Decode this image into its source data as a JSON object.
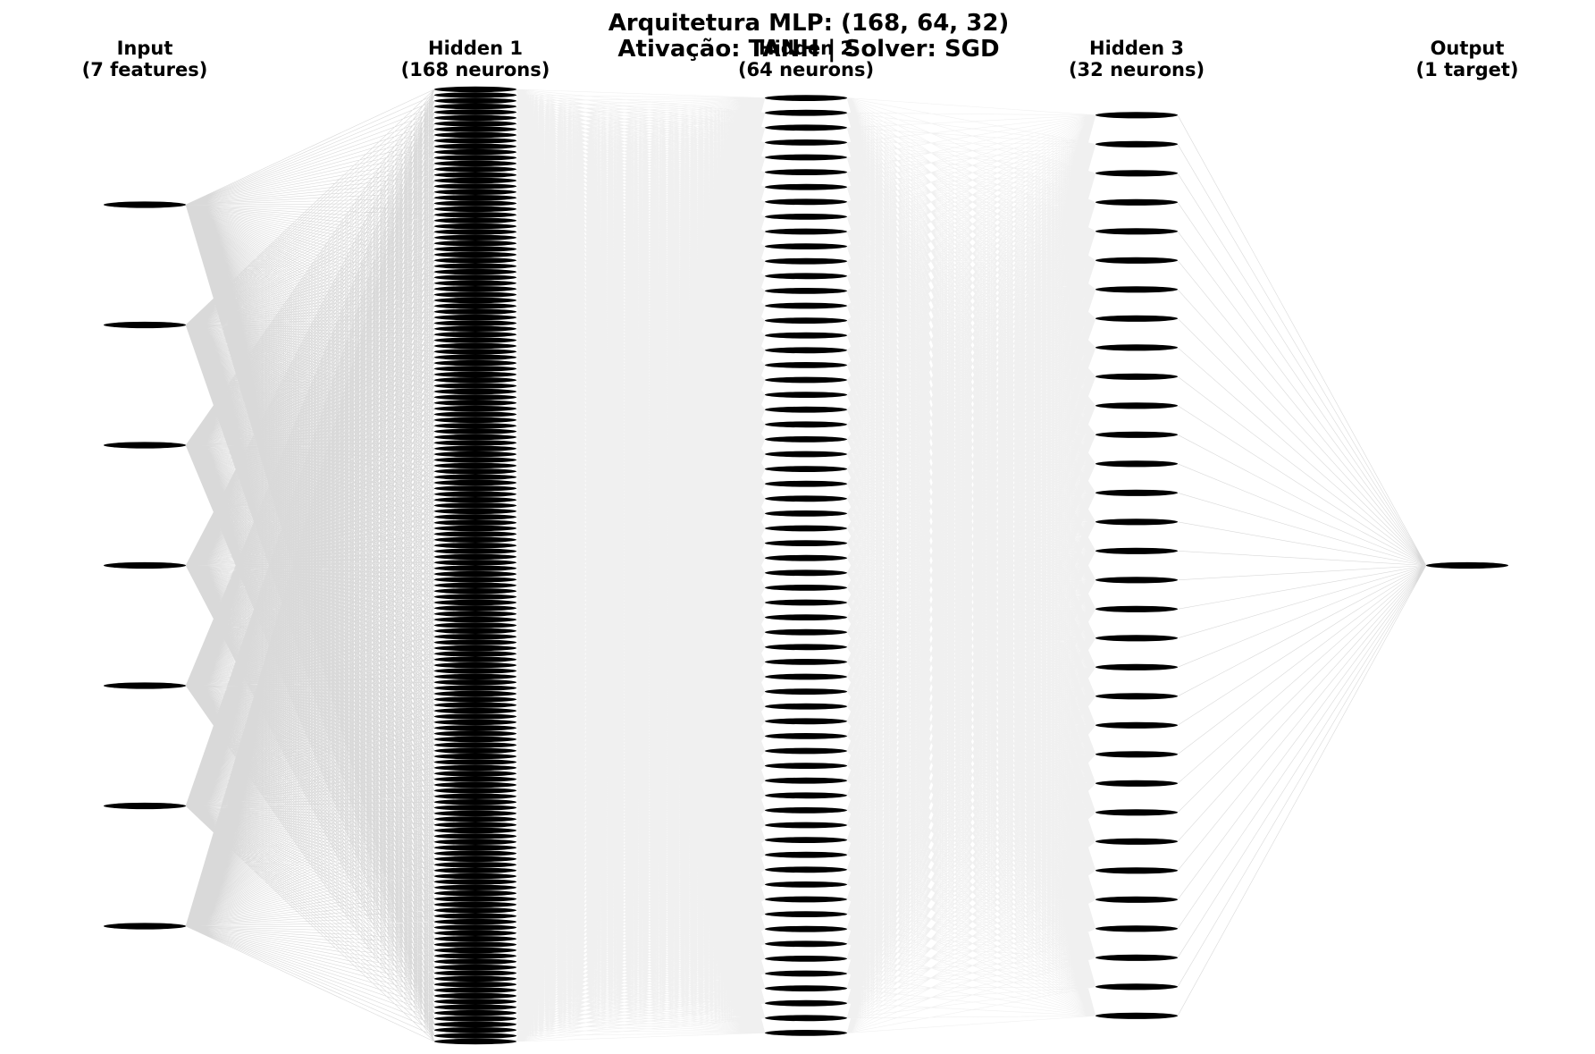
{
  "title": {
    "line1": "Arquitetura MLP: (168, 64, 32)",
    "line2": "Ativação: TANH | Solver: SGD"
  },
  "layers": [
    {
      "name": "Input",
      "detail": "(7 features)",
      "neurons": 7
    },
    {
      "name": "Hidden 1",
      "detail": "(168 neurons)",
      "neurons": 168
    },
    {
      "name": "Hidden 2",
      "detail": "(64 neurons)",
      "neurons": 64
    },
    {
      "name": "Hidden 3",
      "detail": "(32 neurons)",
      "neurons": 32
    },
    {
      "name": "Output",
      "detail": "(1 target)",
      "neurons": 1
    }
  ],
  "colors": {
    "neuron": "#000000",
    "connection": "#808080",
    "background": "#ffffff",
    "text": "#000000"
  }
}
